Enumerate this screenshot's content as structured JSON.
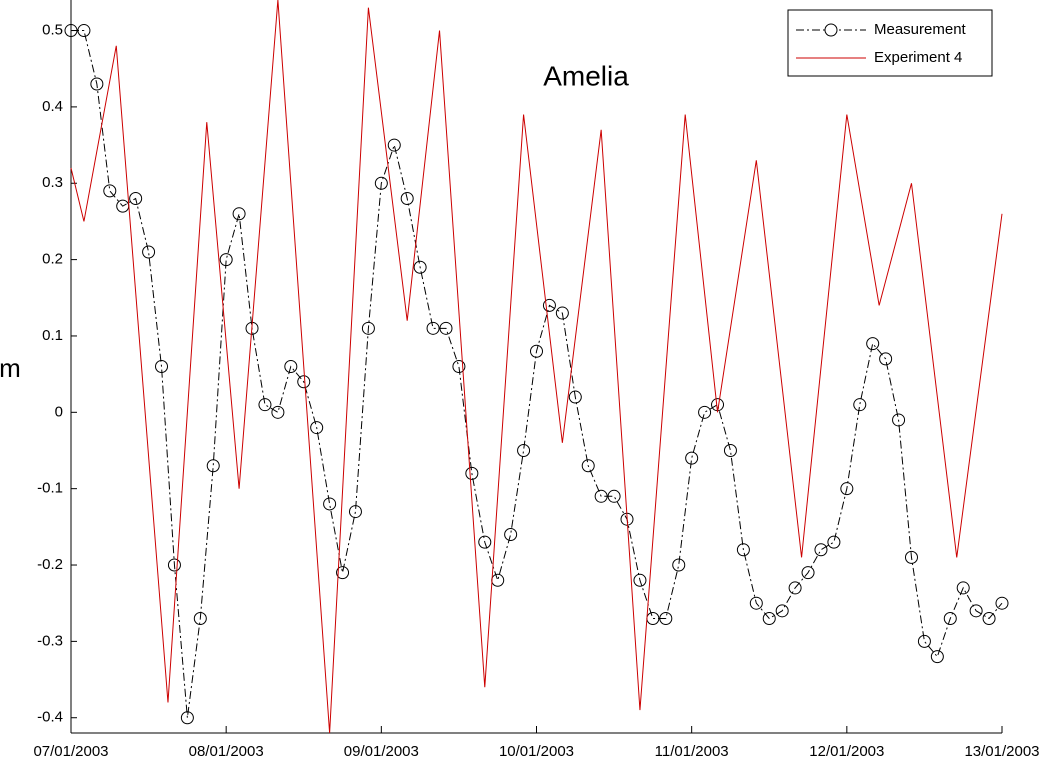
{
  "chart_data": {
    "type": "line",
    "title": "Amelia",
    "y_label": "m",
    "xlim": [
      0,
      144
    ],
    "xticks": [
      {
        "value": 0,
        "label": "07/01/2003"
      },
      {
        "value": 24,
        "label": "08/01/2003"
      },
      {
        "value": 48,
        "label": "09/01/2003"
      },
      {
        "value": 72,
        "label": "10/01/2003"
      },
      {
        "value": 96,
        "label": "11/01/2003"
      },
      {
        "value": 120,
        "label": "12/01/2003"
      },
      {
        "value": 144,
        "label": "13/01/2003"
      }
    ],
    "ylim": [
      -0.42,
      0.54
    ],
    "yticks": [
      -0.4,
      -0.3,
      -0.2,
      -0.1,
      0,
      0.1,
      0.2,
      0.3,
      0.4,
      0.5
    ],
    "legend": "upper right",
    "series": [
      {
        "name": "Measurement",
        "color": "#000000",
        "marker": "circle",
        "linestyle": "dashdot",
        "x": [
          0,
          2,
          4,
          6,
          8,
          10,
          12,
          14,
          16,
          18,
          20,
          22,
          24,
          26,
          28,
          30,
          32,
          34,
          36,
          38,
          40,
          42,
          44,
          46,
          48,
          50,
          52,
          54,
          56,
          58,
          60,
          62,
          64,
          66,
          68,
          70,
          72,
          74,
          76,
          78,
          80,
          82,
          84,
          86,
          88,
          90,
          92,
          94,
          96,
          98,
          100,
          102,
          104,
          106,
          108,
          110,
          112,
          114,
          116,
          118,
          120,
          122,
          124,
          126,
          128,
          130,
          132,
          134,
          136,
          138,
          140,
          142,
          144
        ],
        "values": [
          0.5,
          0.5,
          0.43,
          0.29,
          0.27,
          0.28,
          0.21,
          0.06,
          -0.2,
          -0.4,
          -0.27,
          -0.07,
          0.2,
          0.26,
          0.11,
          0.01,
          0.0,
          0.06,
          0.04,
          -0.02,
          -0.12,
          -0.21,
          -0.13,
          0.11,
          0.3,
          0.35,
          0.28,
          0.19,
          0.11,
          0.11,
          0.06,
          -0.08,
          -0.17,
          -0.22,
          -0.16,
          -0.05,
          0.08,
          0.14,
          0.13,
          0.02,
          -0.07,
          -0.11,
          -0.11,
          -0.14,
          -0.22,
          -0.27,
          -0.27,
          -0.2,
          -0.06,
          0.0,
          0.01,
          -0.05,
          -0.18,
          -0.25,
          -0.27,
          -0.26,
          -0.23,
          -0.21,
          -0.18,
          -0.17,
          -0.1,
          0.01,
          0.09,
          0.07,
          -0.01,
          -0.19,
          -0.3,
          -0.32,
          -0.27,
          -0.23,
          -0.26,
          -0.27,
          -0.25
        ]
      },
      {
        "name": "Experiment 4",
        "color": "#cc0000",
        "marker": "none",
        "linestyle": "solid",
        "x": [
          0,
          2,
          7,
          15,
          21,
          26,
          32,
          40,
          46,
          52,
          57,
          64,
          70,
          76,
          82,
          88,
          95,
          100,
          106,
          113,
          120,
          125,
          130,
          137,
          144
        ],
        "values": [
          0.32,
          0.25,
          0.48,
          -0.38,
          0.38,
          -0.1,
          0.54,
          -0.42,
          0.53,
          0.12,
          0.5,
          -0.36,
          0.39,
          -0.04,
          0.37,
          -0.39,
          0.39,
          0.0,
          0.33,
          -0.19,
          0.39,
          0.14,
          0.3,
          -0.19,
          0.26
        ]
      }
    ]
  }
}
